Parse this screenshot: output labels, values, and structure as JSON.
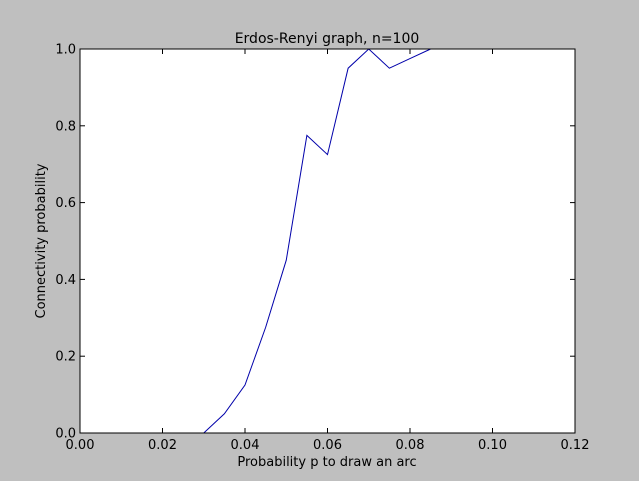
{
  "chart_data": {
    "type": "line",
    "title": "Erdos-Renyi graph, n=100",
    "xlabel": "Probability p to draw an arc",
    "ylabel": "Connectivity probability",
    "xlim": [
      0.0,
      0.12
    ],
    "ylim": [
      0.0,
      1.0
    ],
    "x_ticks": [
      0.0,
      0.02,
      0.04,
      0.06,
      0.08,
      0.1,
      0.12
    ],
    "x_tick_labels": [
      "0.00",
      "0.02",
      "0.04",
      "0.06",
      "0.08",
      "0.10",
      "0.12"
    ],
    "y_ticks": [
      0.0,
      0.2,
      0.4,
      0.6,
      0.8,
      1.0
    ],
    "y_tick_labels": [
      "0.0",
      "0.2",
      "0.4",
      "0.6",
      "0.8",
      "1.0"
    ],
    "grid": false,
    "legend": "none",
    "series": [
      {
        "color": "#0000aa",
        "x": [
          0.0,
          0.005,
          0.01,
          0.015,
          0.02,
          0.025,
          0.03,
          0.035,
          0.04,
          0.045,
          0.05,
          0.055,
          0.06,
          0.065,
          0.07,
          0.075,
          0.08,
          0.085
        ],
        "y": [
          0.0,
          0.0,
          0.0,
          0.0,
          0.0,
          0.0,
          0.0,
          0.05,
          0.125,
          0.275,
          0.45,
          0.775,
          0.725,
          0.95,
          1.0,
          0.95,
          0.975,
          1.0
        ]
      }
    ],
    "colors": {
      "figure_background": "#bfbfbf",
      "axes_background": "#ffffff",
      "line": "#0000aa"
    }
  }
}
